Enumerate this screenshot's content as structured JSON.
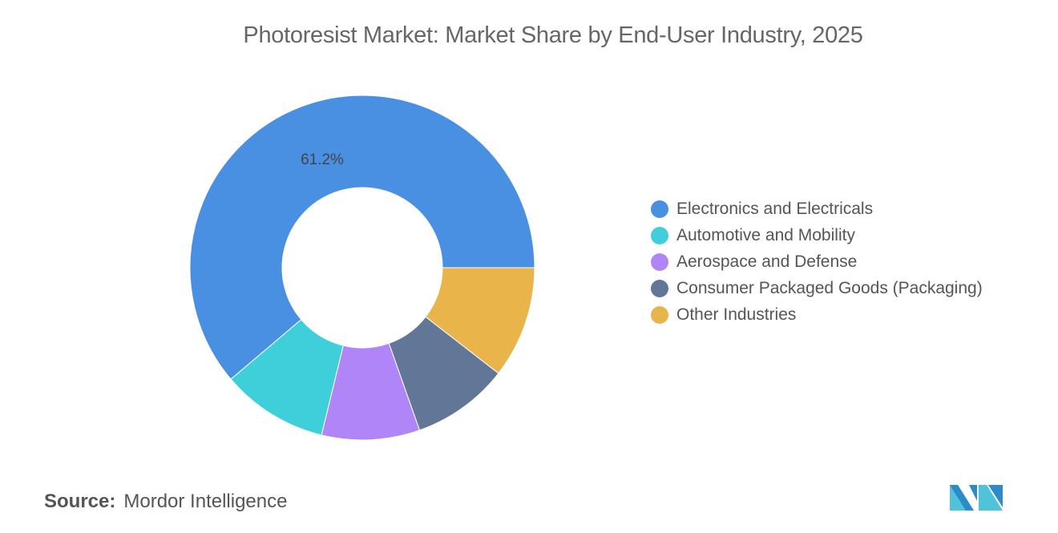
{
  "chart_data": {
    "type": "pie",
    "subtype": "donut",
    "title": "Photoresist Market: Market Share by End-User Industry, 2025",
    "categories": [
      "Electronics and Electricals",
      "Automotive and Mobility",
      "Aerospace and Defense",
      "Consumer Packaged Goods (Packaging)",
      "Other Industries"
    ],
    "values": [
      61.2,
      10.0,
      9.2,
      9.1,
      10.5
    ],
    "unit": "%",
    "data_labels": {
      "Electronics and Electricals": "61.2%"
    },
    "colors": [
      "#4a90e2",
      "#3ecfda",
      "#b085f7",
      "#627798",
      "#e9b54a"
    ],
    "legend_position": "right"
  },
  "source": {
    "label": "Source:",
    "value": "Mordor Intelligence"
  },
  "logo": {
    "text": "Mordor Intelligence logo",
    "colors": [
      "#2c8bc9",
      "#4fc3d9"
    ]
  }
}
